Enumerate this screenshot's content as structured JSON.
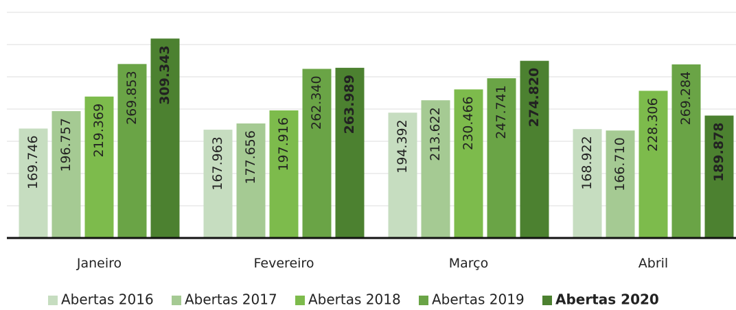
{
  "chart_data": {
    "type": "bar",
    "categories": [
      "Janeiro",
      "Fevereiro",
      "Março",
      "Abril"
    ],
    "series": [
      {
        "name": "Abertas 2016",
        "color": "#c6ddc0",
        "values": [
          169746,
          167963,
          194392,
          168922
        ],
        "value_labels": [
          "169.746",
          "167.963",
          "194.392",
          "168.922"
        ]
      },
      {
        "name": "Abertas 2017",
        "color": "#a5ca93",
        "values": [
          196757,
          177656,
          213622,
          166710
        ],
        "value_labels": [
          "196.757",
          "177.656",
          "213.622",
          "166.710"
        ]
      },
      {
        "name": "Abertas 2018",
        "color": "#7dbb4c",
        "values": [
          219369,
          197916,
          230466,
          228306
        ],
        "value_labels": [
          "219.369",
          "197.916",
          "230.466",
          "228.306"
        ]
      },
      {
        "name": "Abertas 2019",
        "color": "#6aa446",
        "values": [
          269853,
          262340,
          247741,
          269284
        ],
        "value_labels": [
          "269.853",
          "262.340",
          "247.741",
          "269.284"
        ]
      },
      {
        "name": "Abertas 2020",
        "color": "#4c8130",
        "values": [
          309343,
          263989,
          274820,
          189878
        ],
        "value_labels": [
          "309.343",
          "263.989",
          "274.820",
          "189.878"
        ]
      }
    ],
    "ylim": [
      0,
      350000
    ],
    "yticks": [
      0,
      50000,
      100000,
      150000,
      200000,
      250000,
      300000,
      350000
    ],
    "grid": true
  }
}
